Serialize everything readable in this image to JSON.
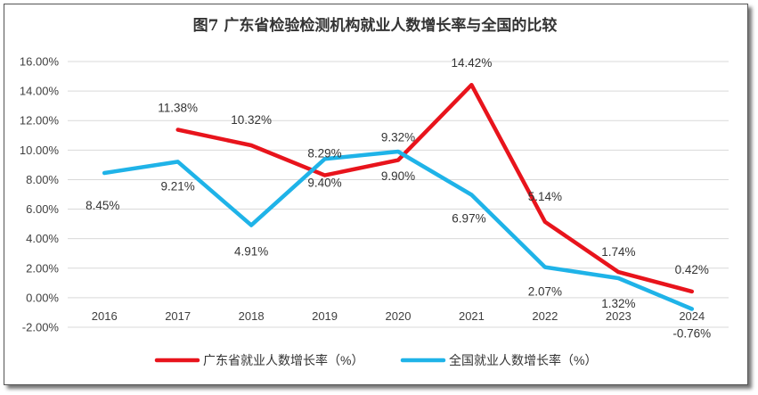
{
  "chart_data": {
    "type": "line",
    "title": "图7  广东省检验检测机构就业人数增长率与全国的比较",
    "categories": [
      "2016",
      "2017",
      "2018",
      "2019",
      "2020",
      "2021",
      "2022",
      "2023",
      "2024"
    ],
    "ylim": [
      -2,
      16
    ],
    "yticks": [
      -2,
      0,
      2,
      4,
      6,
      8,
      10,
      12,
      14,
      16
    ],
    "ytick_labels": [
      "-2.00%",
      "0.00%",
      "2.00%",
      "4.00%",
      "6.00%",
      "8.00%",
      "10.00%",
      "12.00%",
      "14.00%",
      "16.00%"
    ],
    "grid": true,
    "legend_position": "bottom",
    "series": [
      {
        "name": "广东省就业人数增长率（%）",
        "color": "#e8141c",
        "values": [
          null,
          11.38,
          10.32,
          8.29,
          9.32,
          14.42,
          5.14,
          1.74,
          0.42
        ],
        "labels": [
          "",
          "11.38%",
          "10.32%",
          "8.29%",
          "9.32%",
          "14.42%",
          "5.14%",
          "1.74%",
          "0.42%"
        ]
      },
      {
        "name": "全国就业人数增长率（%）",
        "color": "#1fb3e8",
        "values": [
          8.45,
          9.21,
          4.91,
          9.4,
          9.9,
          6.97,
          2.07,
          1.32,
          -0.76
        ],
        "labels": [
          "8.45%",
          "9.21%",
          "4.91%",
          "9.40%",
          "9.90%",
          "6.97%",
          "2.07%",
          "1.32%",
          "-0.76%"
        ]
      }
    ]
  }
}
